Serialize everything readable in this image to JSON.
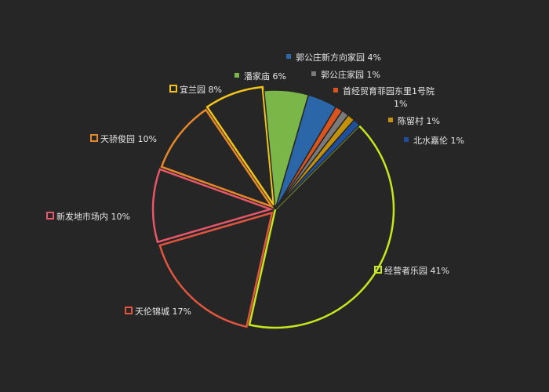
{
  "chart_data": {
    "type": "pie",
    "title": "",
    "legend": "inline labels",
    "slices": [
      {
        "name": "经营者乐园",
        "value": 41,
        "label": "经营者乐园 41%",
        "color": "#c6e61e",
        "style": "outline"
      },
      {
        "name": "天伦锦城",
        "value": 17,
        "label": "天伦锦城 17%",
        "color": "#e2553f",
        "style": "outline"
      },
      {
        "name": "新发地市场内",
        "value": 10,
        "label": "新发地市场内 10%",
        "color": "#e8566a",
        "style": "outline"
      },
      {
        "name": "天骄俊园",
        "value": 10,
        "label": "天骄俊园 10%",
        "color": "#e8862a",
        "style": "outline"
      },
      {
        "name": "宜兰园",
        "value": 8,
        "label": "宜兰园 8%",
        "color": "#f0c419",
        "style": "outline"
      },
      {
        "name": "潘家庙",
        "value": 6,
        "label": "潘家庙 6%",
        "color": "#7ab648",
        "style": "filled"
      },
      {
        "name": "郭公庄新方向家园",
        "value": 4,
        "label": "郭公庄新方向家园 4%",
        "color": "#2a66a8",
        "style": "filled"
      },
      {
        "name": "首经贸育菲园东里1号院",
        "value": 1,
        "label": "首经贸育菲园东里1号院",
        "label2": "1%",
        "color": "#d9541e",
        "style": "filled"
      },
      {
        "name": "郭公庄家园",
        "value": 1,
        "label": "郭公庄家园 1%",
        "color": "#7a7a7a",
        "style": "filled"
      },
      {
        "name": "陈留村",
        "value": 1,
        "label": "陈留村 1%",
        "color": "#c4920a",
        "style": "filled"
      },
      {
        "name": "北水嘉伦",
        "value": 1,
        "label": "北水嘉伦 1%",
        "color": "#1f4f9a",
        "style": "filled"
      }
    ]
  }
}
